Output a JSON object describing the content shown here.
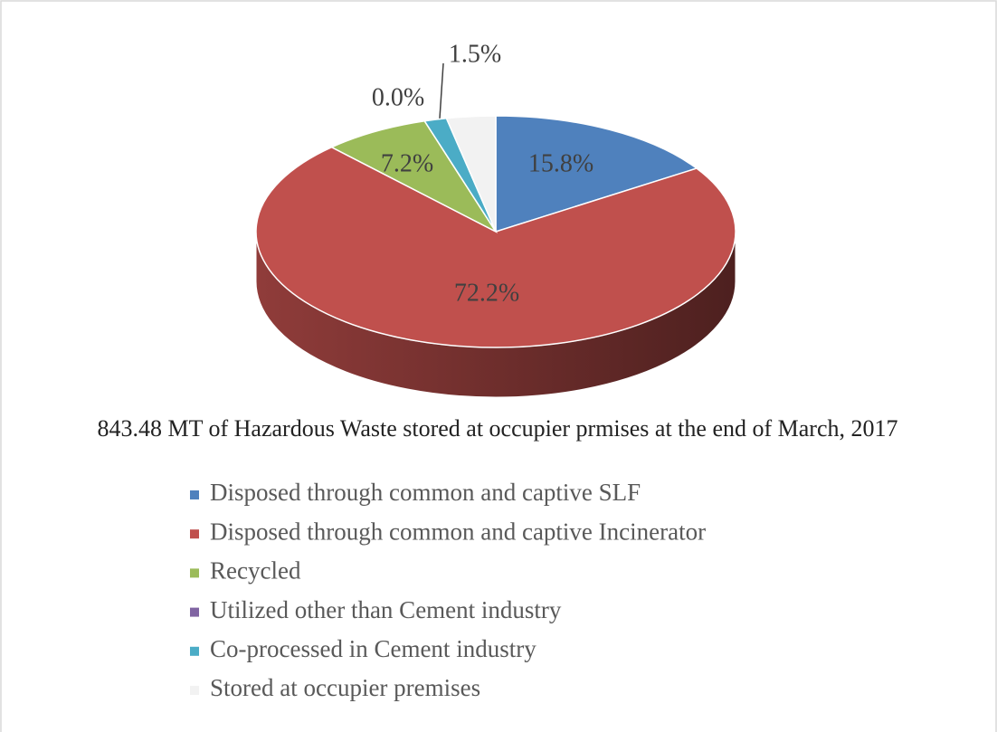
{
  "chart_data": {
    "type": "pie",
    "title": "843.48 MT of Hazardous Waste stored at occupier prmises at the end of March, 2017",
    "categories": [
      "Disposed through common and captive SLF",
      "Disposed through common and captive Incinerator",
      "Recycled",
      "Utilized other than Cement industry",
      "Co-processed in Cement industry",
      "Stored at occupier premises"
    ],
    "values": [
      15.8,
      72.2,
      7.2,
      0.0,
      1.5,
      3.3
    ],
    "value_labels": [
      "15.8%",
      "72.2%",
      "7.2%",
      "0.0%",
      "1.5%",
      null
    ],
    "colors": [
      "#4f81bd",
      "#c0504d",
      "#9bbb59",
      "#8064a2",
      "#4bacc6",
      "#f2f2f2"
    ],
    "legend": "bottom"
  }
}
